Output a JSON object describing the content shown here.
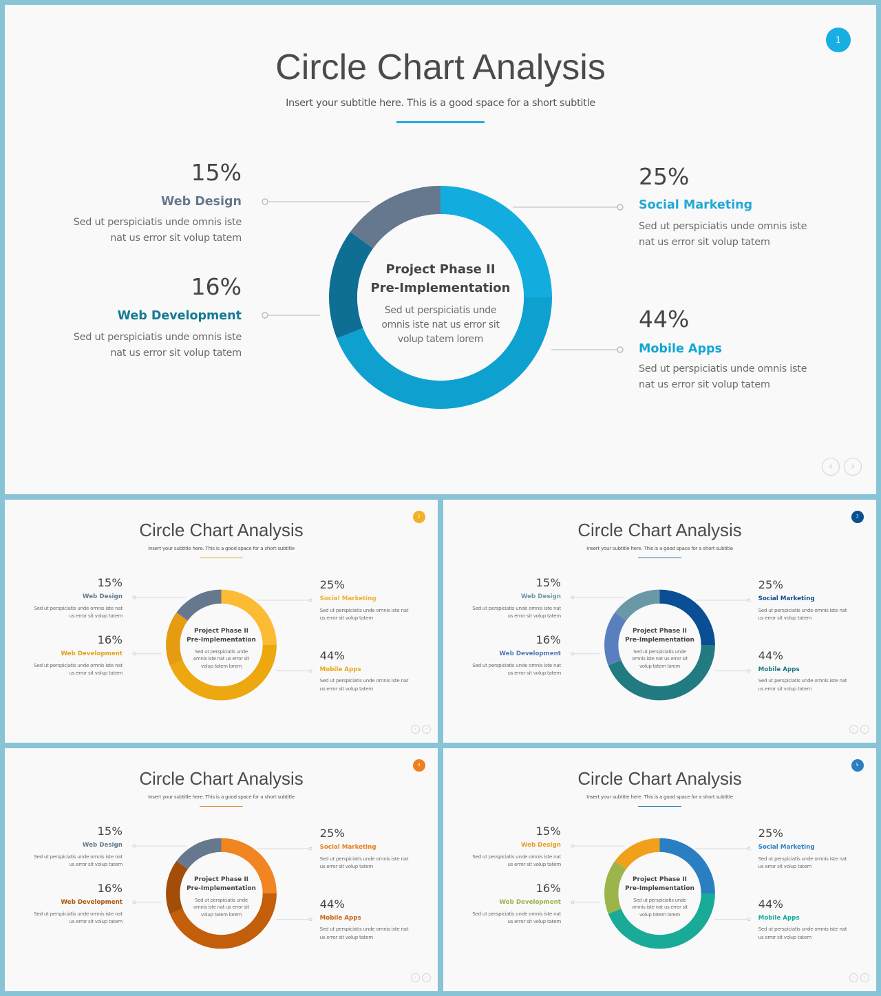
{
  "slides": [
    {
      "page_number": "1",
      "title": "Circle Chart Analysis",
      "subtitle": "Insert your subtitle here. This is a good space for a short subtitle",
      "center_title_line1": "Project Phase II",
      "center_title_line2": "Pre-Implementation",
      "center_desc": "Sed ut perspiciatis unde omnis iste nat us error sit volup tatem lorem",
      "items": [
        {
          "percent": "15%",
          "label": "Web Design",
          "desc": "Sed ut perspiciatis unde omnis iste nat us error sit volup tatem"
        },
        {
          "percent": "16%",
          "label": "Web Development",
          "desc": "Sed ut perspiciatis unde omnis iste nat us error sit volup tatem"
        },
        {
          "percent": "25%",
          "label": "Social Marketing",
          "desc": "Sed ut perspiciatis unde omnis iste nat us error sit volup tatem"
        },
        {
          "percent": "44%",
          "label": "Mobile Apps",
          "desc": "Sed ut perspiciatis unde omnis iste nat us error sit volup tatem"
        }
      ],
      "colors": {
        "accent": "#14a9dc",
        "web_design": "#66788d",
        "web_development": "#0e6e93",
        "social_marketing": "#13acdf",
        "mobile_apps": "#0ea1cf",
        "label_web_design": "#66788d",
        "label_web_development": "#157a94",
        "label_social_marketing": "#22a8d4",
        "label_mobile_apps": "#12a6d6",
        "badge": "#17aee1",
        "underline": "#28aadd"
      }
    },
    {
      "page_number": "2",
      "title": "Circle Chart Analysis",
      "subtitle": "Insert your subtitle here. This is a good space for a short subtitle",
      "center_title_line1": "Project Phase II",
      "center_title_line2": "Pre-Implementation",
      "center_desc": "Sed ut perspiciatis unde omnis iste nat us error sit volup tatem lorem",
      "items": [
        {
          "percent": "15%",
          "label": "Web Design",
          "desc": "Sed ut perspiciatis unde omnis iste nat us error sit volup tatem"
        },
        {
          "percent": "16%",
          "label": "Web Development",
          "desc": "Sed ut perspiciatis unde omnis iste nat us error sit volup tatem"
        },
        {
          "percent": "25%",
          "label": "Social Marketing",
          "desc": "Sed ut perspiciatis unde omnis iste nat us error sit volup tatem"
        },
        {
          "percent": "44%",
          "label": "Mobile Apps",
          "desc": "Sed ut perspiciatis unde omnis iste nat us error sit volup tatem"
        }
      ],
      "colors": {
        "accent": "#f4b128",
        "web_design": "#66788d",
        "web_development": "#e59b12",
        "social_marketing": "#fbbb33",
        "mobile_apps": "#eda70f",
        "label_web_design": "#66788d",
        "label_web_development": "#e3a11b",
        "label_social_marketing": "#f0b12e",
        "label_mobile_apps": "#e8a615",
        "badge": "#f4b128",
        "underline": "#e7a82a"
      }
    },
    {
      "page_number": "3",
      "title": "Circle Chart Analysis",
      "subtitle": "Insert your subtitle here. This is a good space for a short subtitle",
      "center_title_line1": "Project Phase II",
      "center_title_line2": "Pre-Implementation",
      "center_desc": "Sed ut perspiciatis unde omnis iste nat us error sit volup tatem lorem",
      "items": [
        {
          "percent": "15%",
          "label": "Web Design",
          "desc": "Sed ut perspiciatis unde omnis iste nat us error sit volup tatem"
        },
        {
          "percent": "16%",
          "label": "Web Development",
          "desc": "Sed ut perspiciatis unde omnis iste nat us error sit volup tatem"
        },
        {
          "percent": "25%",
          "label": "Social Marketing",
          "desc": "Sed ut perspiciatis unde omnis iste nat us error sit volup tatem"
        },
        {
          "percent": "44%",
          "label": "Mobile Apps",
          "desc": "Sed ut perspiciatis unde omnis iste nat us error sit volup tatem"
        }
      ],
      "colors": {
        "accent": "#0a4f8e",
        "web_design": "#6b98a7",
        "web_development": "#5a7fbf",
        "social_marketing": "#0a4f95",
        "mobile_apps": "#227b80",
        "label_web_design": "#6b98a7",
        "label_web_development": "#4f78b9",
        "label_social_marketing": "#0f4c8a",
        "label_mobile_apps": "#237a80",
        "badge": "#0a4f8e",
        "underline": "#2b6a93"
      }
    },
    {
      "page_number": "4",
      "title": "Circle Chart Analysis",
      "subtitle": "Insert your subtitle here. This is a good space for a short subtitle",
      "center_title_line1": "Project Phase II",
      "center_title_line2": "Pre-Implementation",
      "center_desc": "Sed ut perspiciatis unde omnis iste nat us error sit volup tatem lorem",
      "items": [
        {
          "percent": "15%",
          "label": "Web Design",
          "desc": "Sed ut perspiciatis unde omnis iste nat us error sit volup tatem"
        },
        {
          "percent": "16%",
          "label": "Web Development",
          "desc": "Sed ut perspiciatis unde omnis iste nat us error sit volup tatem"
        },
        {
          "percent": "25%",
          "label": "Social Marketing",
          "desc": "Sed ut perspiciatis unde omnis iste nat us error sit volup tatem"
        },
        {
          "percent": "44%",
          "label": "Mobile Apps",
          "desc": "Sed ut perspiciatis unde omnis iste nat us error sit volup tatem"
        }
      ],
      "colors": {
        "accent": "#ee7f1e",
        "web_design": "#66788d",
        "web_development": "#a24e08",
        "social_marketing": "#f08521",
        "mobile_apps": "#c35e0b",
        "label_web_design": "#66788d",
        "label_web_development": "#a95509",
        "label_social_marketing": "#e7801f",
        "label_mobile_apps": "#c6650e",
        "badge": "#ee7f1e",
        "underline": "#e08a35"
      }
    },
    {
      "page_number": "5",
      "title": "Circle Chart Analysis",
      "subtitle": "Insert your subtitle here. This is a good space for a short subtitle",
      "center_title_line1": "Project Phase II",
      "center_title_line2": "Pre-Implementation",
      "center_desc": "Sed ut perspiciatis unde omnis iste nat us error sit volup tatem lorem",
      "items": [
        {
          "percent": "15%",
          "label": "Web Design",
          "desc": "Sed ut perspiciatis unde omnis iste nat us error sit volup tatem"
        },
        {
          "percent": "16%",
          "label": "Web Development",
          "desc": "Sed ut perspiciatis unde omnis iste nat us error sit volup tatem"
        },
        {
          "percent": "25%",
          "label": "Social Marketing",
          "desc": "Sed ut perspiciatis unde omnis iste nat us error sit volup tatem"
        },
        {
          "percent": "44%",
          "label": "Mobile Apps",
          "desc": "Sed ut perspiciatis unde omnis iste nat us error sit volup tatem"
        }
      ],
      "colors": {
        "accent": "#2a7fc2",
        "web_design": "#f1a01c",
        "web_development": "#9bb54b",
        "social_marketing": "#2a7fc2",
        "mobile_apps": "#1aab98",
        "label_web_design": "#e79d1f",
        "label_web_development": "#97b349",
        "label_social_marketing": "#2a7fc2",
        "label_mobile_apps": "#17a99a",
        "badge": "#2a7fc2",
        "underline": "#2d7cbd"
      }
    }
  ],
  "chart_data": [
    {
      "type": "pie",
      "categories": [
        "Web Design",
        "Web Development",
        "Social Marketing",
        "Mobile Apps"
      ],
      "values": [
        15,
        16,
        25,
        44
      ]
    },
    {
      "type": "pie",
      "categories": [
        "Web Design",
        "Web Development",
        "Social Marketing",
        "Mobile Apps"
      ],
      "values": [
        15,
        16,
        25,
        44
      ]
    },
    {
      "type": "pie",
      "categories": [
        "Web Design",
        "Web Development",
        "Social Marketing",
        "Mobile Apps"
      ],
      "values": [
        15,
        16,
        25,
        44
      ]
    },
    {
      "type": "pie",
      "categories": [
        "Web Design",
        "Web Development",
        "Social Marketing",
        "Mobile Apps"
      ],
      "values": [
        15,
        16,
        25,
        44
      ]
    },
    {
      "type": "pie",
      "categories": [
        "Web Design",
        "Web Development",
        "Social Marketing",
        "Mobile Apps"
      ],
      "values": [
        15,
        16,
        25,
        44
      ]
    }
  ]
}
